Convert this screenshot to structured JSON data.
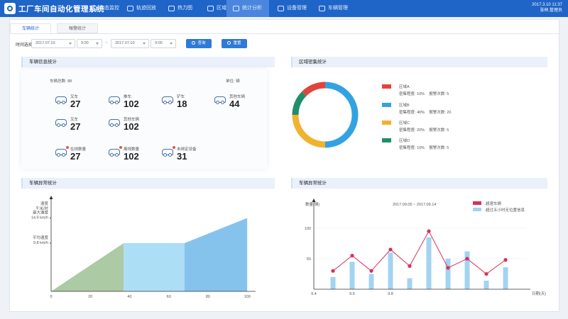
{
  "app": {
    "title": "工厂车间自动化管理系统"
  },
  "nav": {
    "items": [
      {
        "label": "动态监控",
        "icon": "monitor-icon"
      },
      {
        "label": "轨迹回放",
        "icon": "track-icon"
      },
      {
        "label": "热力图",
        "icon": "heatmap-icon"
      },
      {
        "label": "区域设置",
        "icon": "area-icon"
      },
      {
        "label": "统计分析",
        "icon": "stats-icon",
        "active": true
      },
      {
        "label": "设备管理",
        "icon": "device-icon"
      },
      {
        "label": "车辆管理",
        "icon": "vehicle-icon"
      }
    ]
  },
  "header": {
    "date": "2017.3.10  11:37",
    "user": "张林,管理员"
  },
  "tabs": [
    "车辆统计",
    "報警统计"
  ],
  "filter": {
    "label": "时间选择",
    "start_date": "2017.07.10",
    "start_time": "9:00",
    "separator": "~",
    "end_date": "2017.07.10",
    "end_time": "9:00",
    "query_label": "查询",
    "reset_label": "重置"
  },
  "vehicle_panel": {
    "title": "车辆信息统计",
    "total_label": "车辆总数:",
    "total_value": "88",
    "unit_label": "单位:",
    "unit_value": "辆",
    "stats": [
      {
        "label": "叉车",
        "value": "27"
      },
      {
        "label": "推车",
        "value": "102"
      },
      {
        "label": "铲车",
        "value": "18"
      },
      {
        "label": "其他车辆",
        "value": "44"
      },
      {
        "label": "叉车",
        "value": "27"
      },
      {
        "label": "其他车辆",
        "value": "102"
      },
      {
        "label": "在线数量",
        "value": "27"
      },
      {
        "label": "离线数量",
        "value": "102"
      },
      {
        "label": "未绑定设备",
        "value": "31"
      }
    ]
  },
  "area_panel": {
    "title": "区域密集统计",
    "density_label": "密集程度:",
    "alarm_label": "报警次数:",
    "areas": [
      {
        "name": "区域A",
        "density": "10%",
        "alarms": "5",
        "color": "#e0453c"
      },
      {
        "name": "区域B",
        "density": "40%",
        "alarms": "20",
        "color": "#32a2e2"
      },
      {
        "name": "区域C",
        "density": "20%",
        "alarms": "5",
        "color": "#f0b330"
      },
      {
        "name": "区域D",
        "density": "10%",
        "alarms": "5",
        "color": "#1f8f6a"
      }
    ]
  },
  "speed_panel": {
    "title": "车辆异常统计"
  },
  "abnormal_panel": {
    "title": "车辆异常统计"
  },
  "chart_data": [
    {
      "type": "pie",
      "title": "区域密集统计",
      "categories": [
        "区域A",
        "区域B",
        "区域C",
        "区域D"
      ],
      "values": [
        10,
        40,
        20,
        10
      ],
      "colors": [
        "#e0453c",
        "#32a2e2",
        "#f0b330",
        "#1f8f6a"
      ]
    },
    {
      "type": "area",
      "xlabel": "路程(米)",
      "ylabel": "速度 千米/时",
      "x_ticks": [
        "0",
        "20",
        "40",
        "60",
        "80",
        "100"
      ],
      "y_annotations": [
        {
          "label": "最大速度",
          "value_label": "14.9 km/h",
          "value": 14.9
        },
        {
          "label": "平均速度",
          "value_label": "9.8 km/h",
          "value": 9.8
        }
      ],
      "segments": [
        {
          "x": [
            0,
            37
          ],
          "y": [
            0,
            9.8
          ],
          "color": "#a8c79e"
        },
        {
          "x": [
            37,
            68
          ],
          "y": [
            9.8,
            9.8
          ],
          "color": "#a8dcf4"
        },
        {
          "x": [
            68,
            100
          ],
          "y": [
            9.8,
            14.9
          ],
          "color": "#7ec0ec"
        }
      ],
      "xlim": [
        0,
        105
      ],
      "ylim": [
        0,
        18
      ]
    },
    {
      "type": "bar",
      "subtitle": "2017.09.05 ~ 2017.09.14",
      "xlabel": "日期(天)",
      "ylabel": "数量(辆)",
      "x_ticks": [
        "9.4",
        "9.6",
        "9.8",
        "9.10",
        "9.12",
        "9.14"
      ],
      "y_ticks": [
        "50",
        "100"
      ],
      "ylim": [
        0,
        130
      ],
      "series": [
        {
          "name": "超速车辆",
          "type": "line",
          "color": "#d8305a",
          "x": [
            9.5,
            9.6,
            9.7,
            9.8,
            9.9,
            10.0,
            10.1,
            10.2,
            10.3,
            10.4
          ],
          "values": [
            30,
            55,
            30,
            65,
            38,
            95,
            35,
            50,
            25,
            48
          ]
        },
        {
          "name": "超过五小时无位置信息",
          "type": "bar",
          "color": "#a3d3f0",
          "x": [
            9.5,
            9.6,
            9.7,
            9.8,
            9.9,
            10.0,
            10.1,
            10.2,
            10.3,
            10.4
          ],
          "values": [
            20,
            45,
            25,
            60,
            18,
            85,
            50,
            62,
            14,
            36
          ]
        }
      ]
    }
  ]
}
